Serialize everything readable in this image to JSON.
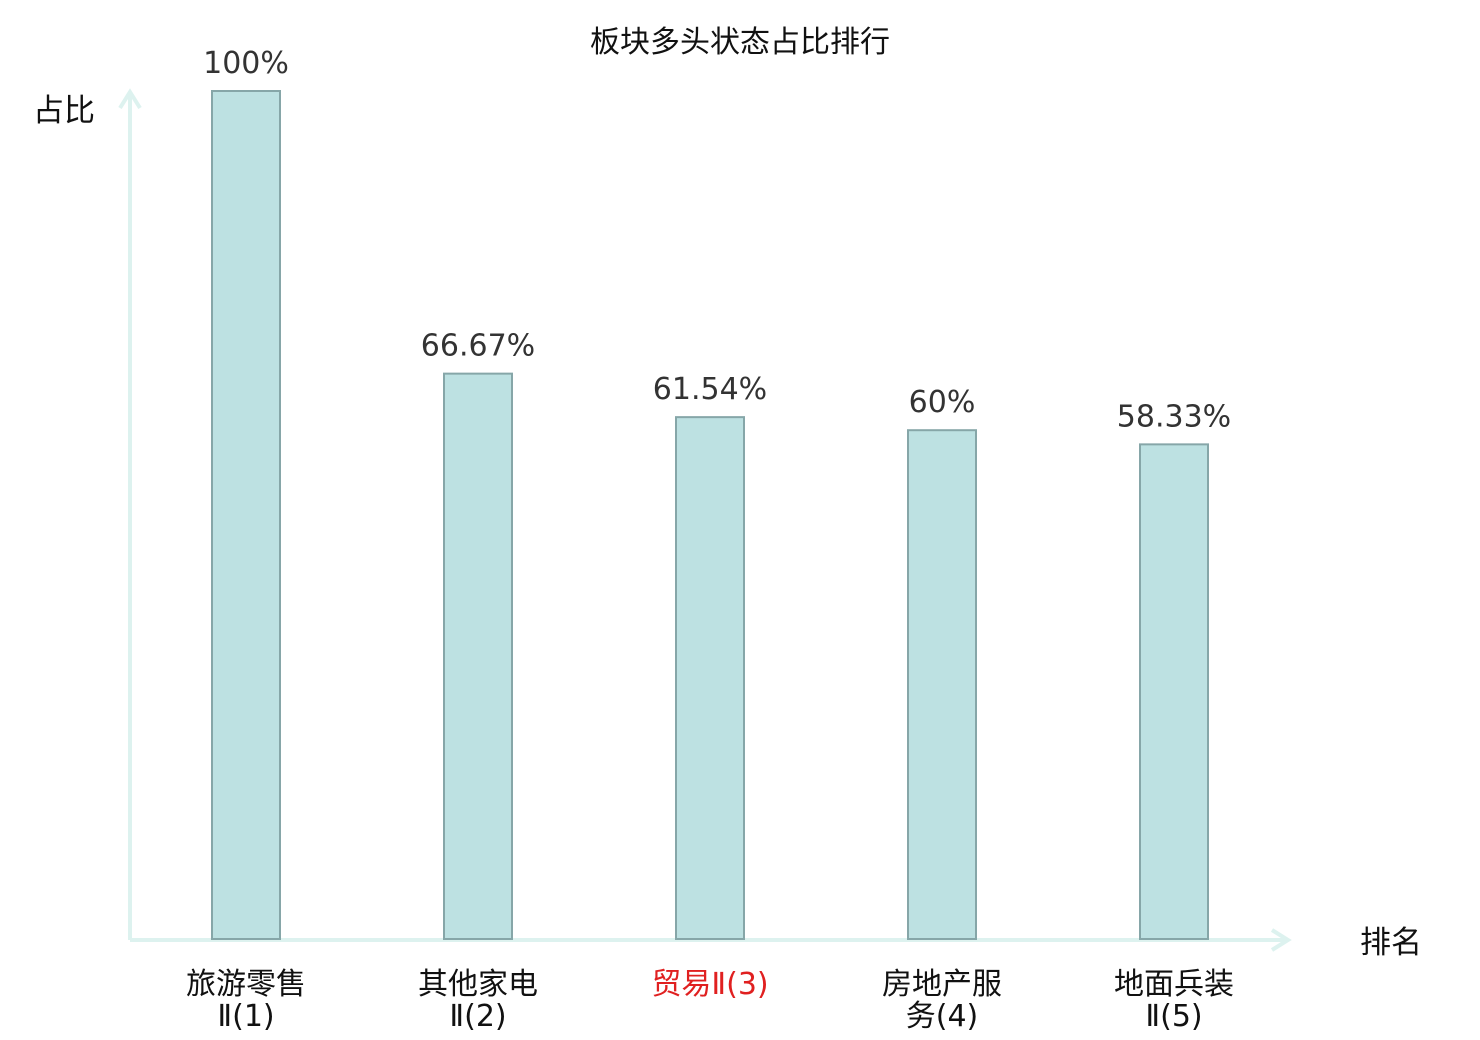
{
  "chart_data": {
    "type": "bar",
    "title": "板块多头状态占比排行",
    "ylabel": "占比",
    "xlabel": "排名",
    "ylim": [
      0,
      100
    ],
    "grid": false,
    "categories": [
      {
        "line1": "旅游零售",
        "line2": "Ⅱ(1)",
        "highlight": false
      },
      {
        "line1": "其他家电",
        "line2": "Ⅱ(2)",
        "highlight": false
      },
      {
        "line1": "贸易Ⅱ(3)",
        "line2": "",
        "highlight": true
      },
      {
        "line1": "房地产服",
        "line2": "务(4)",
        "highlight": false
      },
      {
        "line1": "地面兵装",
        "line2": "Ⅱ(5)",
        "highlight": false
      }
    ],
    "values": [
      100,
      66.67,
      61.54,
      60,
      58.33
    ],
    "value_labels": [
      "100%",
      "66.67%",
      "61.54%",
      "60%",
      "58.33%"
    ],
    "colors": {
      "bar_fill": "#bde1e2",
      "bar_stroke": "#86a6a8",
      "axis": "#ddf2ef",
      "highlight_text": "#e02020"
    }
  }
}
